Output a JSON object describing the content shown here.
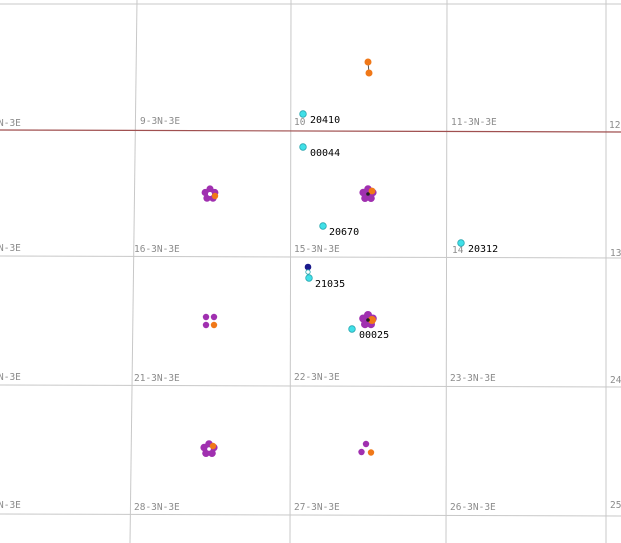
{
  "colors": {
    "grid": "#c8c8c8",
    "boundary": "#a05050",
    "section_label": "#8c8c8c",
    "well": "#40e0e8",
    "well_outline": "#2aa7b0",
    "well_dark": "#1a1a8c",
    "cluster_purple": "#a030b0",
    "cluster_orange": "#f07818",
    "label": "#000000"
  },
  "section_labels": [
    "N-3E",
    "9-3N-3E",
    "10",
    "11-3N-3E",
    "12",
    "N-3E",
    "16-3N-3E",
    "15-3N-3E",
    "14",
    "13",
    "N-3E",
    "21-3N-3E",
    "22-3N-3E",
    "23-3N-3E",
    "24",
    "N-3E",
    "28-3N-3E",
    "27-3N-3E",
    "26-3N-3E",
    "25"
  ],
  "wells": [
    {
      "id": "20410"
    },
    {
      "id": "00044"
    },
    {
      "id": "20670"
    },
    {
      "id": "20312"
    },
    {
      "id": "21035"
    },
    {
      "id": "00025"
    }
  ],
  "clusters": [
    {
      "name": "pair-orange",
      "icon": "well-pair-icon"
    },
    {
      "name": "flower-16-west",
      "icon": "flower-cluster-icon"
    },
    {
      "name": "flower-15-east",
      "icon": "flower-cluster-icon"
    },
    {
      "name": "flower-22",
      "icon": "flower-cluster-icon"
    },
    {
      "name": "quad-21",
      "icon": "quad-cluster-icon"
    },
    {
      "name": "flower-28",
      "icon": "flower-cluster-icon"
    },
    {
      "name": "tri-27",
      "icon": "tri-cluster-icon"
    }
  ]
}
